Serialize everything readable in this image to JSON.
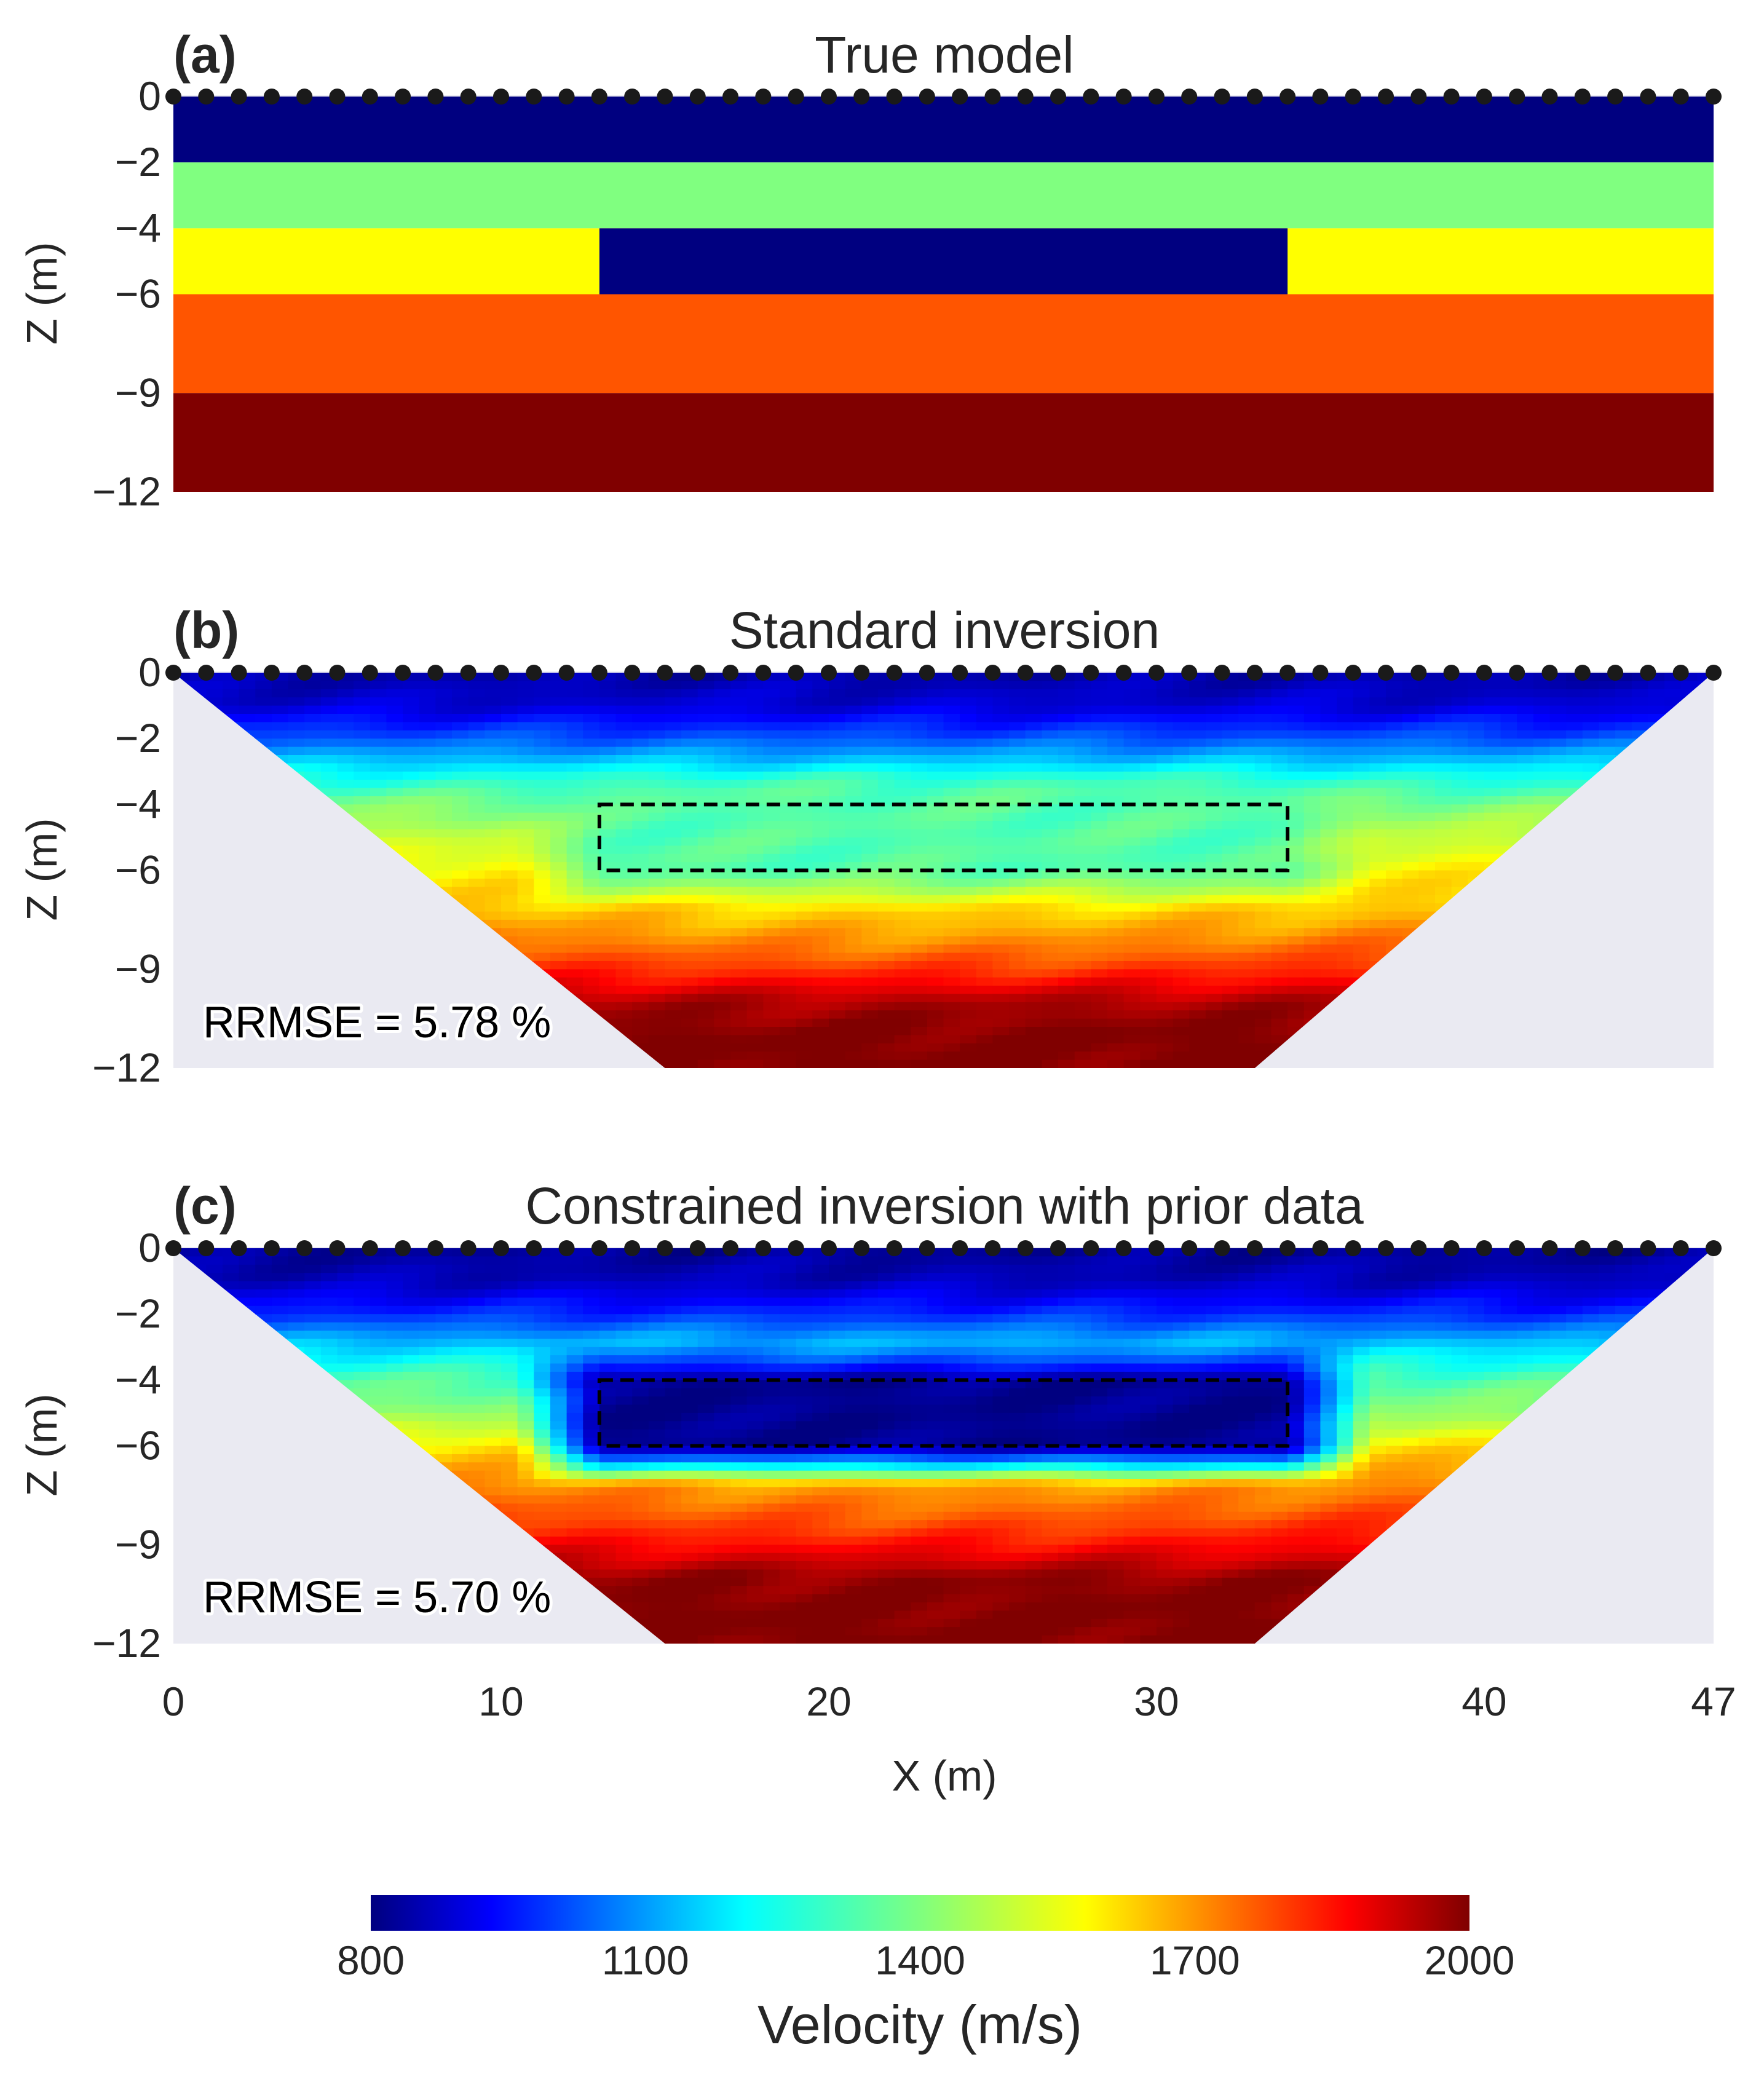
{
  "chart_data": [
    {
      "id": "a",
      "type": "heatmap",
      "panel_label": "(a)",
      "title": "True model",
      "ylabel": "Z (m)",
      "yticks": [
        0,
        -2,
        -4,
        -6,
        -9,
        -12
      ],
      "xlim": [
        0,
        47
      ],
      "ylim": [
        -12,
        0
      ],
      "layers": [
        {
          "z_top": 0,
          "z_bottom": -2,
          "velocity": 800
        },
        {
          "z_top": -2,
          "z_bottom": -4,
          "velocity": 1400
        },
        {
          "z_top": -4,
          "z_bottom": -6,
          "velocity": 1550
        },
        {
          "z_top": -6,
          "z_bottom": -9,
          "velocity": 1750
        },
        {
          "z_top": -9,
          "z_bottom": -12,
          "velocity": 2000
        }
      ],
      "anomaly": {
        "x_min": 13,
        "x_max": 34,
        "z_top": -4,
        "z_bottom": -6,
        "velocity": 800
      },
      "sensors": {
        "count": 48,
        "x_start": 0,
        "x_end": 47,
        "z": 0
      }
    },
    {
      "id": "b",
      "type": "heatmap",
      "panel_label": "(b)",
      "title": "Standard inversion",
      "ylabel": "Z (m)",
      "yticks": [
        0,
        -2,
        -4,
        -6,
        -9,
        -12
      ],
      "annotation": "RRMSE = 5.78 %",
      "rrmse_percent": 5.78,
      "box": {
        "x_min": 13,
        "x_max": 34,
        "z_top": -4,
        "z_bottom": -6
      },
      "coverage": {
        "surface": [
          0,
          47
        ],
        "bottom": [
          15,
          33
        ],
        "z_min": -12
      },
      "velocity_profile": [
        {
          "z": 0,
          "velocity": 850
        },
        {
          "z": -1,
          "velocity": 900
        },
        {
          "z": -2,
          "velocity": 1050
        },
        {
          "z": -3,
          "velocity": 1250
        },
        {
          "z": -4,
          "velocity": 1400
        },
        {
          "z": -5,
          "velocity": 1480
        },
        {
          "z": -6,
          "velocity": 1560
        },
        {
          "z": -7,
          "velocity": 1650
        },
        {
          "z": -8,
          "velocity": 1760
        },
        {
          "z": -9,
          "velocity": 1850
        },
        {
          "z": -10,
          "velocity": 1950
        },
        {
          "z": -11,
          "velocity": 2000
        },
        {
          "z": -12,
          "velocity": 2000
        }
      ],
      "box_velocity": 1350,
      "sensors": {
        "count": 48,
        "x_start": 0,
        "x_end": 47,
        "z": 0
      }
    },
    {
      "id": "c",
      "type": "heatmap",
      "panel_label": "(c)",
      "title": "Constrained inversion with prior data",
      "ylabel": "Z (m)",
      "yticks": [
        0,
        -2,
        -4,
        -6,
        -9,
        -12
      ],
      "xlabel": "X (m)",
      "xticks": [
        0,
        10,
        20,
        30,
        40,
        47
      ],
      "annotation": "RRMSE = 5.70 %",
      "rrmse_percent": 5.7,
      "box": {
        "x_min": 13,
        "x_max": 34,
        "z_top": -4,
        "z_bottom": -6
      },
      "coverage": {
        "surface": [
          0,
          47
        ],
        "bottom": [
          15,
          33
        ],
        "z_min": -12
      },
      "velocity_profile": [
        {
          "z": 0,
          "velocity": 830
        },
        {
          "z": -1,
          "velocity": 870
        },
        {
          "z": -2,
          "velocity": 1000
        },
        {
          "z": -3,
          "velocity": 1200
        },
        {
          "z": -4,
          "velocity": 1350
        },
        {
          "z": -5,
          "velocity": 1420
        },
        {
          "z": -6,
          "velocity": 1580
        },
        {
          "z": -7,
          "velocity": 1720
        },
        {
          "z": -8,
          "velocity": 1820
        },
        {
          "z": -9,
          "velocity": 1900
        },
        {
          "z": -10,
          "velocity": 1980
        },
        {
          "z": -11,
          "velocity": 2000
        },
        {
          "z": -12,
          "velocity": 2000
        }
      ],
      "box_velocity": 820,
      "sensors": {
        "count": 48,
        "x_start": 0,
        "x_end": 47,
        "z": 0
      }
    }
  ],
  "colorbar": {
    "label": "Velocity (m/s)",
    "min": 800,
    "max": 2000,
    "ticks": [
      800,
      1100,
      1400,
      1700,
      2000
    ],
    "colormap": "jet"
  },
  "colors": {
    "background_no_data": "#eaeaf2",
    "sensor": "#1a1a1a",
    "text": "#262626"
  }
}
